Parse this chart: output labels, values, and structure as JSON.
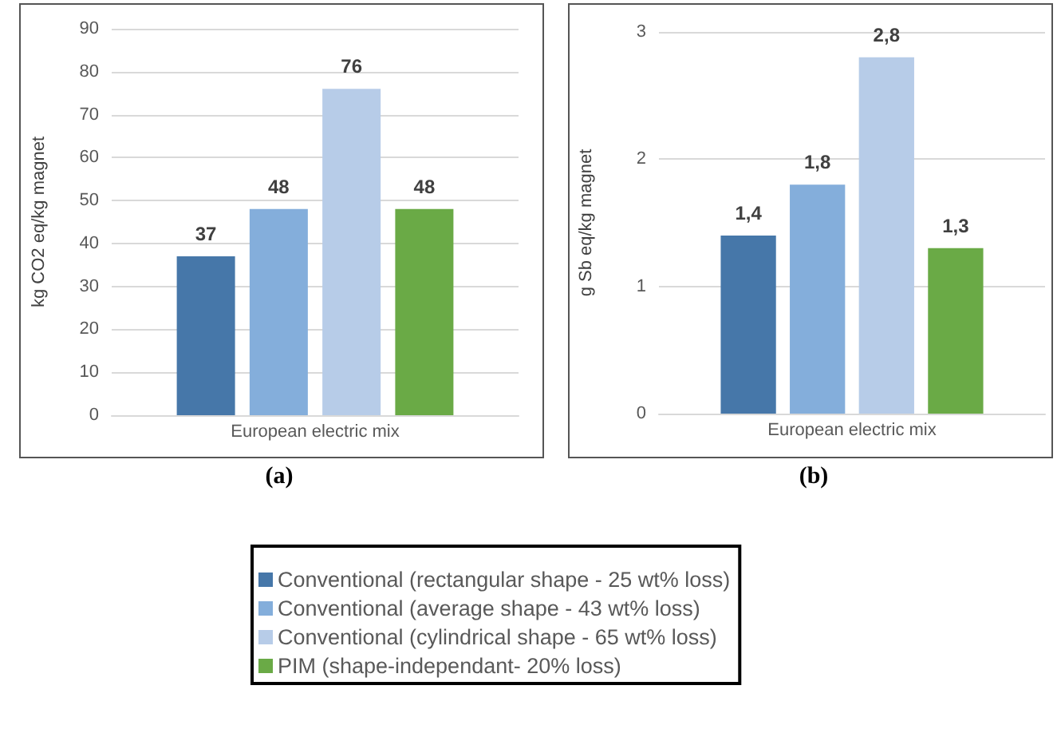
{
  "chart_data": [
    {
      "type": "bar",
      "title": "(a)",
      "ylabel": "kg CO2 eq/kg magnet",
      "categories": [
        "European electric mix"
      ],
      "series": [
        {
          "name": "Conventional (rectangular shape - 25 wt% loss)",
          "color": "#4677a9",
          "values": [
            37
          ]
        },
        {
          "name": "Conventional (average shape - 43 wt% loss)",
          "color": "#84aedb",
          "values": [
            48
          ]
        },
        {
          "name": "Conventional (cylindrical shape - 65 wt% loss)",
          "color": "#b7cce8",
          "values": [
            76
          ]
        },
        {
          "name": "PIM (shape-independant- 20% loss)",
          "color": "#6aaa46",
          "values": [
            48
          ]
        }
      ],
      "ylim": [
        0,
        90
      ],
      "yticks": [
        0,
        10,
        20,
        30,
        40,
        50,
        60,
        70,
        80,
        90
      ],
      "grid": "y",
      "data_labels": true,
      "legend": "bottom"
    },
    {
      "type": "bar",
      "title": "(b)",
      "ylabel": "g Sb eq/kg magnet",
      "categories": [
        "European electric mix"
      ],
      "series": [
        {
          "color": "#4677a9",
          "values": [
            1.4
          ],
          "value_labels": [
            "1,4"
          ]
        },
        {
          "color": "#84aedb",
          "values": [
            1.8
          ],
          "value_labels": [
            "1,8"
          ]
        },
        {
          "color": "#b7cce8",
          "values": [
            2.8
          ],
          "value_labels": [
            "2,8"
          ]
        },
        {
          "color": "#6aaa46",
          "values": [
            1.3
          ],
          "value_labels": [
            "1,3"
          ]
        }
      ],
      "ylim": [
        0,
        3
      ],
      "yticks": [
        0,
        1,
        2,
        3
      ],
      "grid": "y",
      "legend": false
    }
  ]
}
